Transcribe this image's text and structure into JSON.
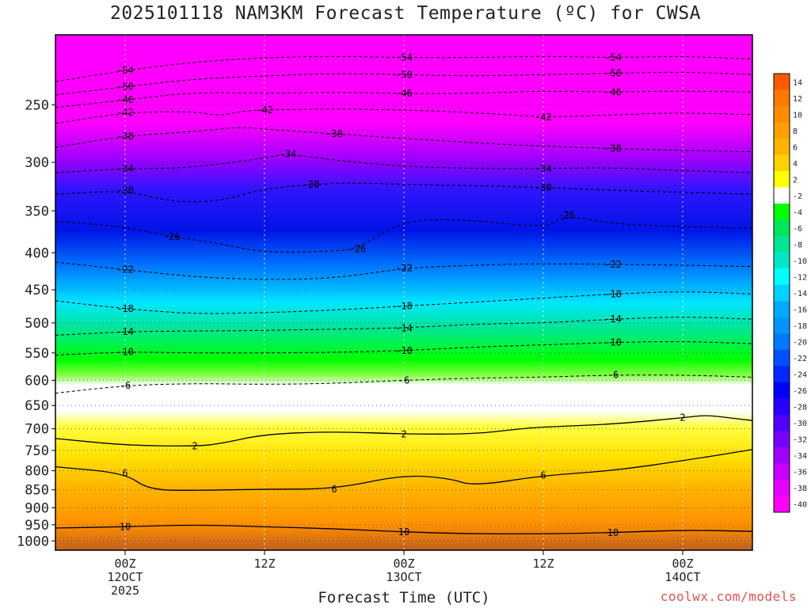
{
  "chart_data": {
    "type": "heatmap",
    "title": "2025101118 NAM3KM Forecast Temperature (ºC) for CWSA",
    "xlabel": "Forecast Time (UTC)",
    "ylabel": "",
    "x_ticks": [
      {
        "t": 6,
        "lines": [
          "00Z",
          "12OCT",
          "2025"
        ]
      },
      {
        "t": 18,
        "lines": [
          "12Z"
        ]
      },
      {
        "t": 30,
        "lines": [
          "00Z",
          "13OCT"
        ]
      },
      {
        "t": 42,
        "lines": [
          "12Z"
        ]
      },
      {
        "t": 54,
        "lines": [
          "00Z",
          "14OCT"
        ]
      }
    ],
    "xlim": [
      0,
      60
    ],
    "y_ticks": [
      250,
      300,
      350,
      400,
      450,
      500,
      550,
      600,
      650,
      700,
      750,
      800,
      850,
      900,
      950,
      1000
    ],
    "ylim": [
      1030,
      200
    ],
    "y_scale": "log",
    "colorbar": {
      "labels": [
        "14",
        "12",
        "10",
        "8",
        "6",
        "4",
        "2",
        "-2",
        "-4",
        "-6",
        "-8",
        "-10",
        "-12",
        "-14",
        "-16",
        "-18",
        "-20",
        "-22",
        "-24",
        "-26",
        "-28",
        "-30",
        "-32",
        "-34",
        "-36",
        "-38",
        "-40"
      ],
      "colors": [
        "#ff5a00",
        "#ff7800",
        "#ff8c00",
        "#ffa000",
        "#ffb400",
        "#ffd200",
        "#ffff00",
        "#ffffff",
        "#00ff00",
        "#00e658",
        "#00e694",
        "#00e6c8",
        "#00ffff",
        "#00d2ff",
        "#00aaff",
        "#0096ff",
        "#0078ff",
        "#0050ff",
        "#0028ff",
        "#0000ff",
        "#2800ff",
        "#5000ff",
        "#7800ff",
        "#a000ff",
        "#c800ff",
        "#e600ff",
        "#ff00ff"
      ]
    },
    "contours": [
      {
        "value": -54,
        "label": "-54",
        "points": [
          [
            0,
            232
          ],
          [
            6,
            224
          ],
          [
            12,
            218
          ],
          [
            18,
            215
          ],
          [
            24,
            214
          ],
          [
            30,
            215
          ],
          [
            36,
            215
          ],
          [
            42,
            214
          ],
          [
            48,
            215
          ],
          [
            54,
            214
          ],
          [
            60,
            216
          ]
        ]
      },
      {
        "value": -50,
        "label": "-50",
        "points": [
          [
            0,
            242
          ],
          [
            6,
            236
          ],
          [
            12,
            230
          ],
          [
            18,
            228
          ],
          [
            24,
            226
          ],
          [
            30,
            227
          ],
          [
            36,
            228
          ],
          [
            42,
            227
          ],
          [
            48,
            226
          ],
          [
            54,
            225
          ],
          [
            60,
            227
          ]
        ]
      },
      {
        "value": -46,
        "label": "-46",
        "points": [
          [
            0,
            252
          ],
          [
            6,
            246
          ],
          [
            12,
            240
          ],
          [
            18,
            241
          ],
          [
            24,
            240
          ],
          [
            30,
            241
          ],
          [
            36,
            241
          ],
          [
            42,
            239
          ],
          [
            48,
            240
          ],
          [
            54,
            239
          ],
          [
            60,
            240
          ]
        ]
      },
      {
        "value": -42,
        "label": "-42",
        "points": [
          [
            0,
            265
          ],
          [
            6,
            256
          ],
          [
            12,
            255
          ],
          [
            14,
            259
          ],
          [
            16,
            255
          ],
          [
            18,
            254
          ],
          [
            24,
            253
          ],
          [
            30,
            254
          ],
          [
            36,
            256
          ],
          [
            42,
            260
          ],
          [
            48,
            258
          ],
          [
            54,
            256
          ],
          [
            60,
            258
          ]
        ]
      },
      {
        "value": -38,
        "label": "-38",
        "points": [
          [
            0,
            286
          ],
          [
            6,
            276
          ],
          [
            12,
            272
          ],
          [
            16,
            268
          ],
          [
            18,
            270
          ],
          [
            24,
            274
          ],
          [
            30,
            278
          ],
          [
            36,
            282
          ],
          [
            42,
            285
          ],
          [
            48,
            287
          ],
          [
            54,
            289
          ],
          [
            60,
            290
          ]
        ]
      },
      {
        "value": -34,
        "label": "-34",
        "points": [
          [
            0,
            310
          ],
          [
            6,
            306
          ],
          [
            10,
            306
          ],
          [
            14,
            302
          ],
          [
            18,
            296
          ],
          [
            20,
            292
          ],
          [
            24,
            298
          ],
          [
            30,
            304
          ],
          [
            36,
            306
          ],
          [
            42,
            306
          ],
          [
            48,
            305
          ],
          [
            54,
            308
          ],
          [
            60,
            310
          ]
        ]
      },
      {
        "value": -30,
        "label": "-30",
        "points": [
          [
            0,
            332
          ],
          [
            6,
            328
          ],
          [
            10,
            340
          ],
          [
            14,
            340
          ],
          [
            18,
            326
          ],
          [
            22,
            322
          ],
          [
            26,
            320
          ],
          [
            30,
            322
          ],
          [
            36,
            323
          ],
          [
            42,
            325
          ],
          [
            48,
            328
          ],
          [
            54,
            330
          ],
          [
            60,
            332
          ]
        ]
      },
      {
        "value": -26,
        "label": "-26",
        "points": [
          [
            0,
            362
          ],
          [
            6,
            368
          ],
          [
            10,
            380
          ],
          [
            14,
            388
          ],
          [
            18,
            400
          ],
          [
            24,
            398
          ],
          [
            26,
            395
          ],
          [
            30,
            360
          ],
          [
            36,
            360
          ],
          [
            42,
            370
          ],
          [
            44,
            355
          ],
          [
            48,
            365
          ],
          [
            54,
            368
          ],
          [
            60,
            370
          ]
        ]
      },
      {
        "value": -22,
        "label": "-22",
        "points": [
          [
            0,
            412
          ],
          [
            6,
            422
          ],
          [
            12,
            432
          ],
          [
            18,
            436
          ],
          [
            24,
            434
          ],
          [
            30,
            420
          ],
          [
            36,
            416
          ],
          [
            42,
            414
          ],
          [
            48,
            415
          ],
          [
            54,
            416
          ],
          [
            60,
            418
          ]
        ]
      },
      {
        "value": -18,
        "label": "-18",
        "points": [
          [
            0,
            466
          ],
          [
            6,
            478
          ],
          [
            12,
            486
          ],
          [
            18,
            484
          ],
          [
            24,
            480
          ],
          [
            30,
            474
          ],
          [
            36,
            468
          ],
          [
            42,
            462
          ],
          [
            48,
            456
          ],
          [
            54,
            452
          ],
          [
            60,
            456
          ]
        ]
      },
      {
        "value": -14,
        "label": "-14",
        "points": [
          [
            0,
            520
          ],
          [
            6,
            514
          ],
          [
            12,
            513
          ],
          [
            18,
            512
          ],
          [
            24,
            510
          ],
          [
            30,
            508
          ],
          [
            36,
            502
          ],
          [
            42,
            500
          ],
          [
            48,
            494
          ],
          [
            54,
            490
          ],
          [
            60,
            494
          ]
        ]
      },
      {
        "value": -10,
        "label": "-10",
        "points": [
          [
            0,
            554
          ],
          [
            6,
            548
          ],
          [
            12,
            550
          ],
          [
            18,
            550
          ],
          [
            24,
            549
          ],
          [
            30,
            546
          ],
          [
            36,
            540
          ],
          [
            42,
            536
          ],
          [
            48,
            532
          ],
          [
            54,
            530
          ],
          [
            60,
            534
          ]
        ]
      },
      {
        "value": -6,
        "label": "-6",
        "points": [
          [
            0,
            625
          ],
          [
            6,
            610
          ],
          [
            12,
            606
          ],
          [
            18,
            608
          ],
          [
            24,
            606
          ],
          [
            30,
            600
          ],
          [
            36,
            596
          ],
          [
            42,
            594
          ],
          [
            48,
            590
          ],
          [
            54,
            590
          ],
          [
            60,
            594
          ]
        ]
      },
      {
        "value": 2,
        "label": "2",
        "style": "solid",
        "points": [
          [
            0,
            722
          ],
          [
            6,
            738
          ],
          [
            12,
            740
          ],
          [
            14,
            735
          ],
          [
            18,
            712
          ],
          [
            24,
            706
          ],
          [
            30,
            712
          ],
          [
            36,
            712
          ],
          [
            40,
            700
          ],
          [
            42,
            696
          ],
          [
            48,
            690
          ],
          [
            54,
            676
          ],
          [
            56,
            670
          ],
          [
            58,
            676
          ],
          [
            60,
            682
          ]
        ]
      },
      {
        "value": 6,
        "label": "6",
        "style": "solid",
        "points": [
          [
            0,
            790
          ],
          [
            6,
            806
          ],
          [
            8,
            850
          ],
          [
            12,
            852
          ],
          [
            18,
            848
          ],
          [
            24,
            848
          ],
          [
            30,
            810
          ],
          [
            34,
            820
          ],
          [
            36,
            840
          ],
          [
            42,
            812
          ],
          [
            48,
            800
          ],
          [
            54,
            775
          ],
          [
            60,
            748
          ]
        ]
      },
      {
        "value": 10,
        "label": "10",
        "style": "solid",
        "points": [
          [
            0,
            960
          ],
          [
            6,
            956
          ],
          [
            12,
            950
          ],
          [
            18,
            956
          ],
          [
            24,
            962
          ],
          [
            30,
            972
          ],
          [
            36,
            978
          ],
          [
            42,
            978
          ],
          [
            48,
            974
          ],
          [
            54,
            966
          ],
          [
            60,
            970
          ]
        ]
      }
    ]
  },
  "site_credit": "coolwx.com/models"
}
